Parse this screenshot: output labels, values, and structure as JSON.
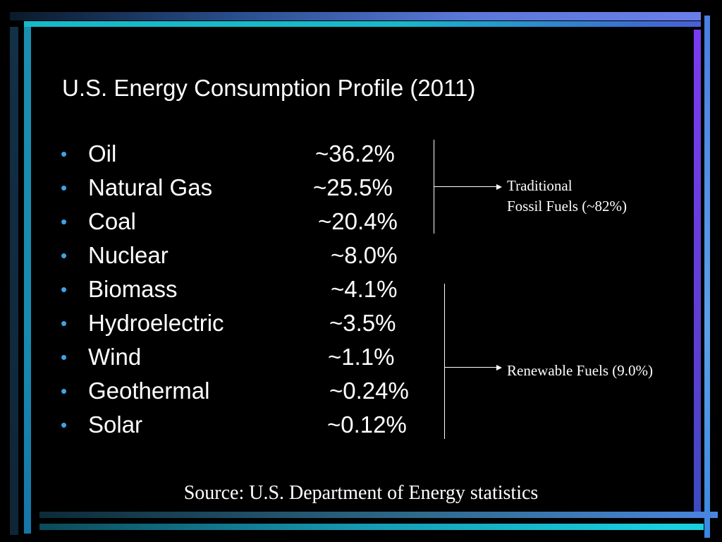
{
  "slide": {
    "title": "U.S. Energy Consumption Profile (2011)",
    "bullet_char": "•",
    "items": [
      {
        "label": "Oil",
        "value": "~36.2%"
      },
      {
        "label": "Natural Gas",
        "value": "~25.5%"
      },
      {
        "label": "Coal",
        "value": "~20.4%"
      },
      {
        "label": "Nuclear",
        "value": "~8.0%"
      },
      {
        "label": "Biomass",
        "value": "~4.1%"
      },
      {
        "label": "Hydroelectric",
        "value": "~3.5%"
      },
      {
        "label": "Wind",
        "value": "~1.1%"
      },
      {
        "label": "Geothermal",
        "value": "~0.24%"
      },
      {
        "label": "Solar",
        "value": "~0.12%"
      }
    ],
    "groups": {
      "fossil": {
        "line1": "Traditional",
        "line2": "Fossil Fuels (~82%)"
      },
      "renewable": {
        "label": "Renewable Fuels (9.0%)"
      }
    },
    "source": "Source: U.S. Department of Energy statistics"
  },
  "colors": {
    "background": "#000000",
    "text": "#ffffff",
    "bullet": "#3fa3e8",
    "frame_cyan": "#17b9c9",
    "frame_blue": "#4a7fe0",
    "frame_purple": "#7a3cf0"
  }
}
